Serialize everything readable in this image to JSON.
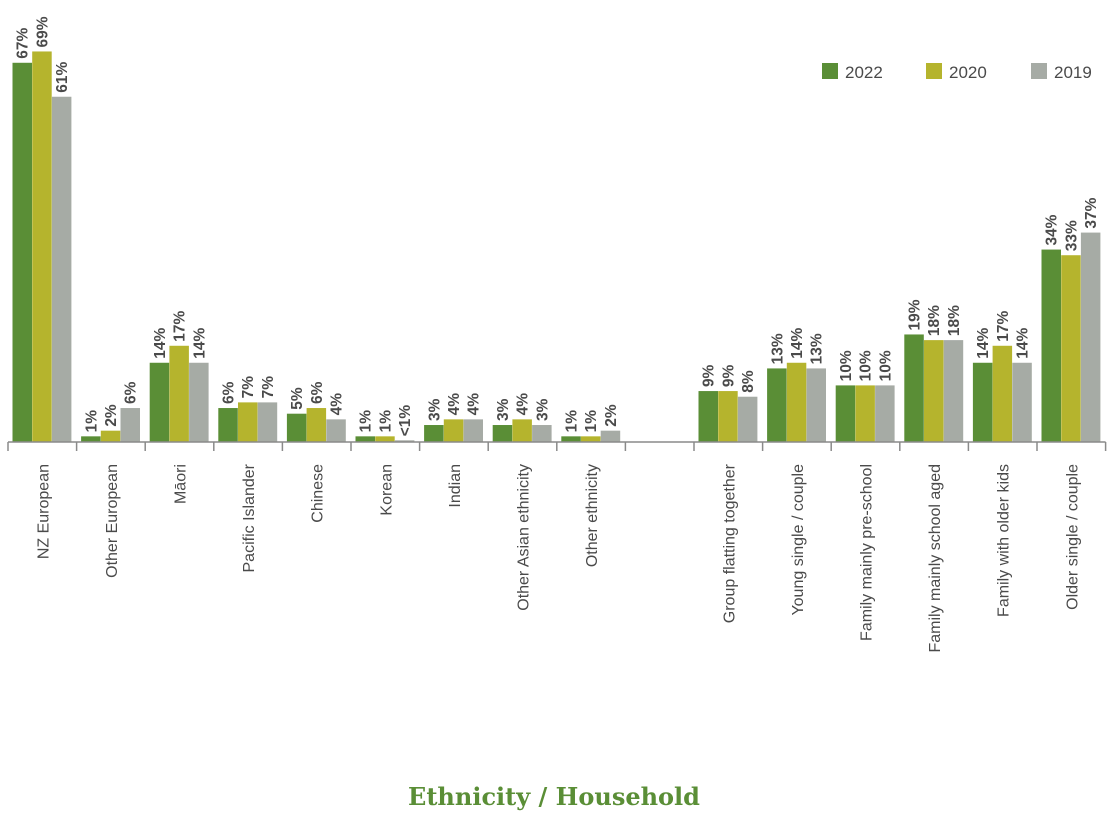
{
  "chart_data": {
    "type": "bar",
    "xlabel": "Ethnicity / Household",
    "ylim": [
      0,
      70
    ],
    "grid": false,
    "legend_position": "top-right",
    "categories": [
      "NZ European",
      "Other European",
      "Māori",
      "Pacific Islander",
      "Chinese",
      "Korean",
      "Indian",
      "Other Asian ethnicity",
      "Other ethnicity",
      "",
      "Group flatting together",
      "Young single / couple",
      "Family mainly pre-school",
      "Family mainly school aged",
      "Family with older kids",
      "Older single / couple"
    ],
    "series": [
      {
        "name": "2022",
        "color": "#5a8e36",
        "values": [
          67,
          1,
          14,
          6,
          5,
          1,
          3,
          3,
          1,
          null,
          9,
          13,
          10,
          19,
          14,
          34
        ],
        "labels": [
          "67%",
          "1%",
          "14%",
          "6%",
          "5%",
          "1%",
          "3%",
          "3%",
          "1%",
          "",
          "9%",
          "13%",
          "10%",
          "19%",
          "14%",
          "34%"
        ]
      },
      {
        "name": "2020",
        "color": "#b5b42d",
        "values": [
          69,
          2,
          17,
          7,
          6,
          1,
          4,
          4,
          1,
          null,
          9,
          14,
          10,
          18,
          17,
          33
        ],
        "labels": [
          "69%",
          "2%",
          "17%",
          "7%",
          "6%",
          "1%",
          "4%",
          "4%",
          "1%",
          "",
          "9%",
          "14%",
          "10%",
          "18%",
          "17%",
          "33%"
        ]
      },
      {
        "name": "2019",
        "color": "#a6aba5",
        "values": [
          61,
          6,
          14,
          7,
          4,
          0.3,
          4,
          3,
          2,
          null,
          8,
          13,
          10,
          18,
          14,
          37
        ],
        "labels": [
          "61%",
          "6%",
          "14%",
          "7%",
          "4%",
          "<1%",
          "4%",
          "3%",
          "2%",
          "",
          "8%",
          "13%",
          "10%",
          "18%",
          "14%",
          "37%"
        ]
      }
    ],
    "title_color": "#5a8e36"
  }
}
